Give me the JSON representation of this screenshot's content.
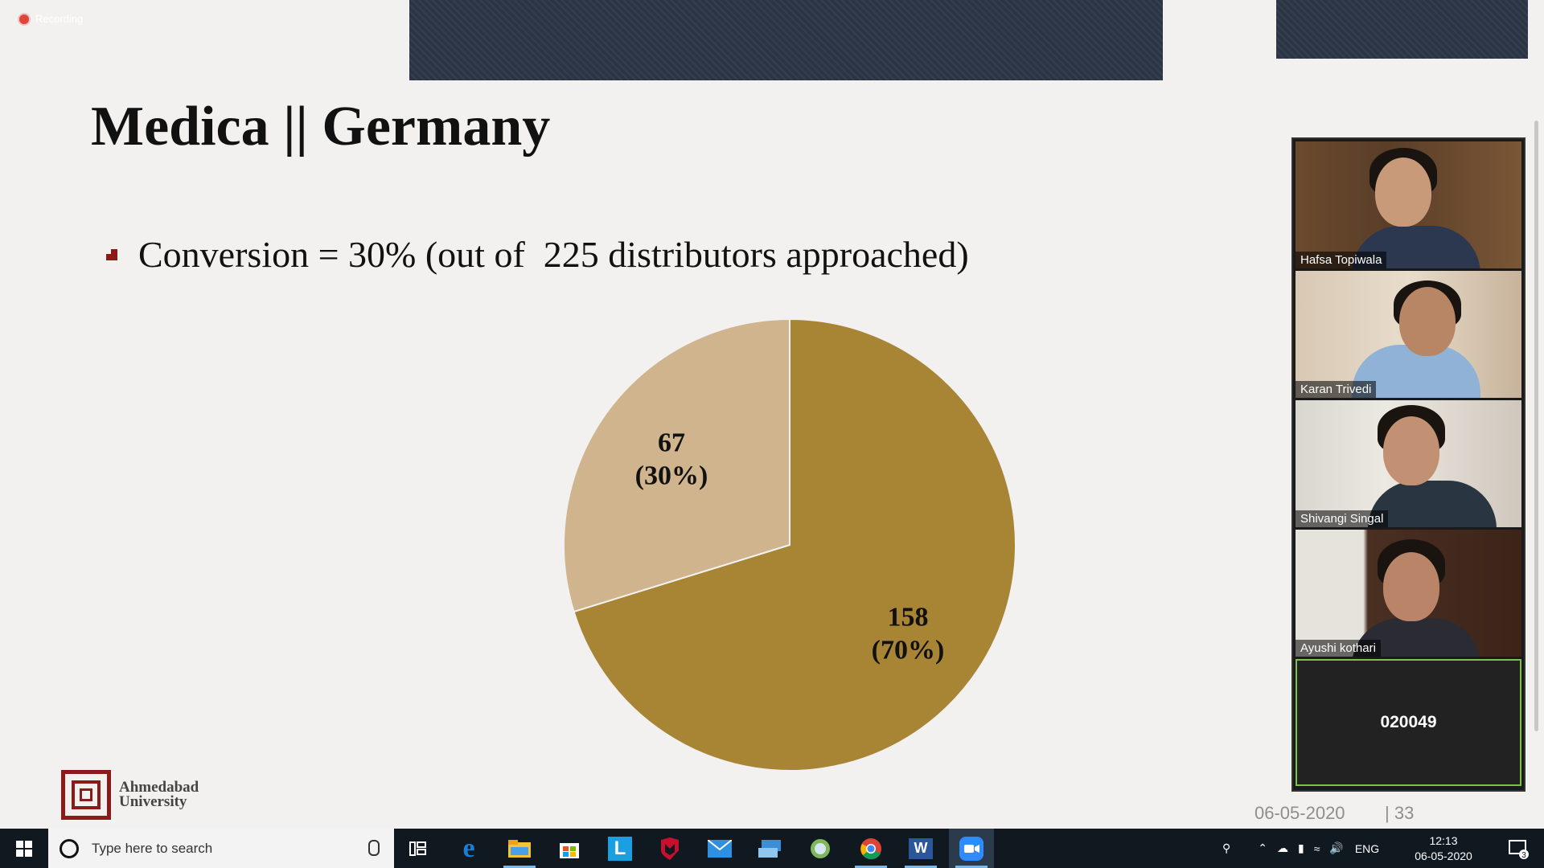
{
  "recording": {
    "label": "Recording"
  },
  "slide": {
    "title": "Medica || Germany",
    "bullet": "Conversion = 30% (out of  225 distributors approached)",
    "logo_line1": "Ahmedabad",
    "logo_line2": "University",
    "footer_date": "06-05-2020",
    "footer_page": "| 33"
  },
  "chart_data": {
    "type": "pie",
    "slices": [
      {
        "label": "158",
        "percent_label": "(70%)",
        "value": 158,
        "color": "#a88435"
      },
      {
        "label": "67",
        "percent_label": "(30%)",
        "value": 67,
        "color": "#cfb48e"
      }
    ],
    "start_angle_deg": 0,
    "direction": "clockwise"
  },
  "participants": [
    {
      "name": "Hafsa Topiwala"
    },
    {
      "name": "Karan Trivedi"
    },
    {
      "name": "Shivangi Singal"
    },
    {
      "name": "Ayushi kothari"
    },
    {
      "name": "020049"
    }
  ],
  "taskbar": {
    "search_placeholder": "Type here to search",
    "apps": [
      "task-view",
      "edge",
      "file-explorer",
      "store",
      "l-app",
      "mcafee",
      "mail",
      "remote-desktop",
      "globe-app",
      "chrome",
      "word",
      "zoom"
    ],
    "language": "ENG",
    "time": "12:13",
    "date": "06-05-2020",
    "notification_count": "3"
  },
  "colors": {
    "slide_bg": "#f2f1ef",
    "brand_red": "#8b1a1a",
    "taskbar_bg": "#101820"
  }
}
